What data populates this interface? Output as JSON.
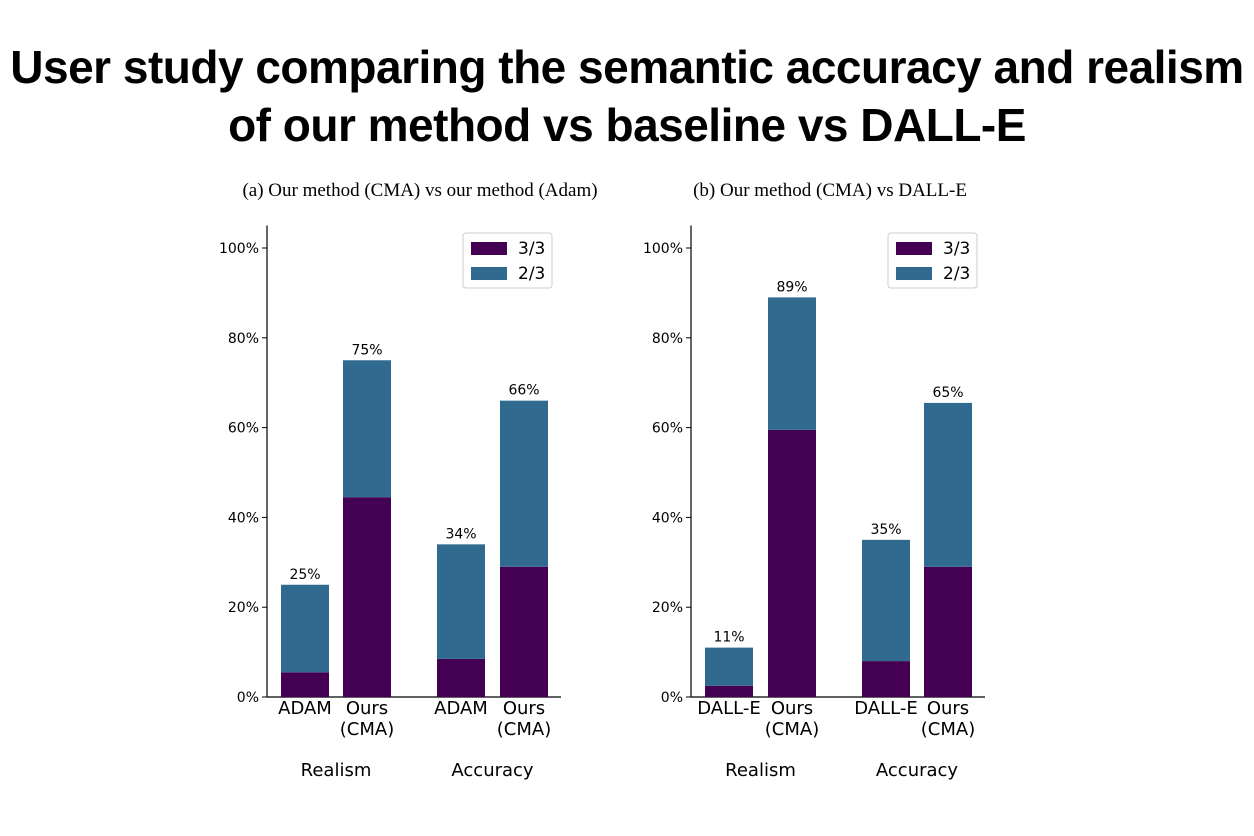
{
  "title_lines": [
    "User study comparing the semantic accuracy and realism",
    "of our method vs baseline vs DALL-E"
  ],
  "colors": {
    "three_of_three": "#440154",
    "two_of_three": "#306b8f"
  },
  "chart_data": [
    {
      "type": "bar",
      "stacked": true,
      "title": "(a) Our method (CMA) vs our method (Adam)",
      "groups": [
        "Realism",
        "Accuracy"
      ],
      "categories": [
        [
          "ADAM"
        ],
        [
          "Ours",
          "(CMA)"
        ],
        [
          "ADAM"
        ],
        [
          "Ours",
          "(CMA)"
        ]
      ],
      "series": [
        {
          "name": "3/3",
          "values": [
            5.5,
            44.5,
            8.5,
            29
          ]
        },
        {
          "name": "2/3",
          "values": [
            19.5,
            30.5,
            25.5,
            37
          ]
        }
      ],
      "totals_labels": [
        "25%",
        "75%",
        "34%",
        "66%"
      ],
      "yticks": [
        "0%",
        "20%",
        "40%",
        "60%",
        "80%",
        "100%"
      ],
      "ylim": [
        0,
        105
      ],
      "legend": "top-right",
      "grid": false
    },
    {
      "type": "bar",
      "stacked": true,
      "title": "(b) Our method (CMA) vs DALL-E",
      "groups": [
        "Realism",
        "Accuracy"
      ],
      "categories": [
        [
          "DALL-E"
        ],
        [
          "Ours",
          "(CMA)"
        ],
        [
          "DALL-E"
        ],
        [
          "Ours",
          "(CMA)"
        ]
      ],
      "series": [
        {
          "name": "3/3",
          "values": [
            2.5,
            59.5,
            8,
            29
          ]
        },
        {
          "name": "2/3",
          "values": [
            8.5,
            29.5,
            27,
            36.5
          ]
        }
      ],
      "totals_labels": [
        "11%",
        "89%",
        "35%",
        "65%"
      ],
      "yticks": [
        "0%",
        "20%",
        "40%",
        "60%",
        "80%",
        "100%"
      ],
      "ylim": [
        0,
        105
      ],
      "legend": "top-right",
      "grid": false
    }
  ]
}
